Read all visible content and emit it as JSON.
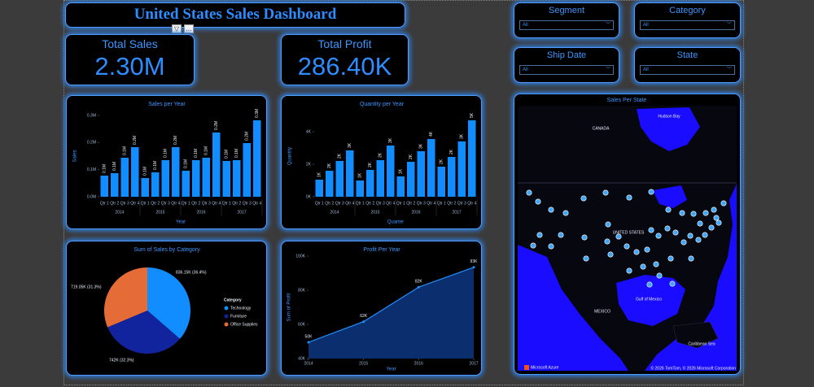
{
  "header": {
    "title": "United States Sales Dashboard"
  },
  "cards": [
    {
      "title": "Total Sales",
      "value": "2.30M"
    },
    {
      "title": "Total Profit",
      "value": "286.40K"
    }
  ],
  "slicers": [
    {
      "title": "Segment",
      "value": "All"
    },
    {
      "title": "Category",
      "value": "All"
    },
    {
      "title": "Ship Date",
      "value": "All"
    },
    {
      "title": "State",
      "value": "All"
    }
  ],
  "map": {
    "title": "Sales Per State",
    "labels": [
      "CANADA",
      "Hudson Bay",
      "UNITED STATES",
      "Gulf of Mexico",
      "MEXICO",
      "Caribbean Sea"
    ],
    "credit": "Microsoft Azure",
    "copyright": "© 2026 TomTom, © 2026 Microsoft Corporation"
  },
  "chart_data": [
    {
      "type": "bar",
      "title": "Sales per Year",
      "x_label": "Year",
      "y_label": "Sales",
      "categories": [
        "Qtr 1",
        "Qtr 2",
        "Qtr 3",
        "Qtr 4",
        "Qtr 1",
        "Qtr 2",
        "Qtr 3",
        "Qtr 4",
        "Qtr 1",
        "Qtr 2",
        "Qtr 3",
        "Qtr 4",
        "Qtr 1",
        "Qtr 2",
        "Qtr 3",
        "Qtr 4"
      ],
      "groups": [
        "2014",
        "2015",
        "2016",
        "2017"
      ],
      "values": [
        0.078,
        0.087,
        0.144,
        0.183,
        0.069,
        0.09,
        0.135,
        0.183,
        0.096,
        0.135,
        0.144,
        0.237,
        0.132,
        0.135,
        0.198,
        0.282
      ],
      "value_labels": [
        "0.1M",
        "0.1M",
        "0.1M",
        "0.2M",
        "0.1M",
        "0.1M",
        "0.1M",
        "0.2M",
        "0.1M",
        "0.1M",
        "0.1M",
        "0.2M",
        "0.1M",
        "0.1M",
        "0.2M",
        "0.3M"
      ],
      "color": "#118dff",
      "ylim": [
        0,
        0.3
      ],
      "yticks": [
        {
          "value": 0,
          "label": "0.0M"
        },
        {
          "value": 0.1,
          "label": "0.1M"
        },
        {
          "value": 0.2,
          "label": "0.2M"
        },
        {
          "value": 0.3,
          "label": "0.3M"
        }
      ]
    },
    {
      "type": "bar",
      "title": "Quantity per Year",
      "x_label": "Quarter",
      "y_label": "Quantity",
      "categories": [
        "Qtr 1",
        "Qtr 2",
        "Qtr 3",
        "Qtr 4",
        "Qtr 1",
        "Qtr 2",
        "Qtr 3",
        "Qtr 4",
        "Qtr 1",
        "Qtr 2",
        "Qtr 3",
        "Qtr 4",
        "Qtr 1",
        "Qtr 2",
        "Qtr 3",
        "Qtr 4"
      ],
      "groups": [
        "2014",
        "2015",
        "2016",
        "2017"
      ],
      "values": [
        1.05,
        1.6,
        2.2,
        2.85,
        1.0,
        1.65,
        2.25,
        3.15,
        1.25,
        2.15,
        2.8,
        3.55,
        1.85,
        2.45,
        3.4,
        4.7
      ],
      "value_labels": [
        "1K",
        "2K",
        "2K",
        "3K",
        "1K",
        "2K",
        "2K",
        "3K",
        "1K",
        "2K",
        "3K",
        "4K",
        "2K",
        "2K",
        "3K",
        "5K"
      ],
      "color": "#118dff",
      "ylim": [
        0,
        5
      ],
      "yticks": [
        {
          "value": 0,
          "label": "0K"
        },
        {
          "value": 2,
          "label": "2K"
        },
        {
          "value": 4,
          "label": "4K"
        }
      ]
    },
    {
      "type": "pie",
      "title": "Sum of Sales by Category",
      "legend_title": "Category",
      "categories": [
        "Technology",
        "Furniture",
        "Office Supplies"
      ],
      "values": [
        836.15,
        742,
        719.05
      ],
      "value_labels": [
        "836.15K (36.4%)",
        "742K (32.3%)",
        "719.05K (31.3%)"
      ],
      "colors": [
        "#118dff",
        "#12239e",
        "#e66c37"
      ]
    },
    {
      "type": "line",
      "title": "Profit Per Year",
      "x_label": "Year",
      "y_label": "Sum of Profit",
      "x": [
        2014,
        2015,
        2016,
        2017
      ],
      "values": [
        49.54,
        61.62,
        81.8,
        93.44
      ],
      "value_labels": [
        "50K",
        "62K",
        "82K",
        "93K"
      ],
      "color": "#1f8fff",
      "fill": "#0b2f6e",
      "xlim": [
        2014,
        2017
      ],
      "xticks": [
        2014,
        2015,
        2016,
        2017
      ],
      "ylim": [
        40,
        100
      ],
      "yticks": [
        {
          "value": 40,
          "label": "40K"
        },
        {
          "value": 60,
          "label": "60K"
        },
        {
          "value": 80,
          "label": "80K"
        },
        {
          "value": 100,
          "label": "100K"
        }
      ]
    }
  ]
}
